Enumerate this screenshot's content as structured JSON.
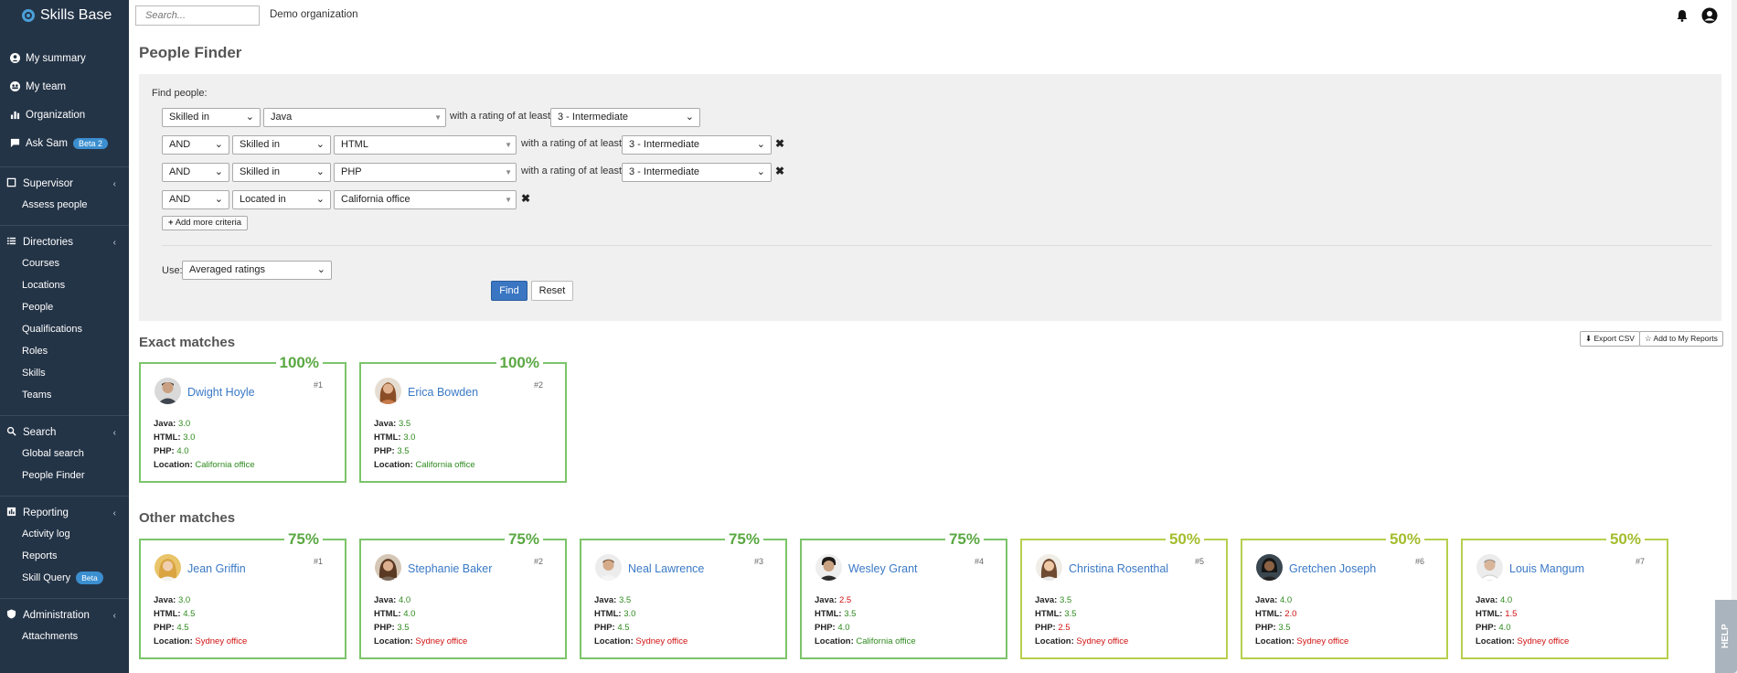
{
  "app": {
    "brand": "Skills Base"
  },
  "topbar": {
    "search_placeholder": "Search...",
    "org": "Demo organization"
  },
  "sidebar": {
    "top_items": [
      {
        "label": "My summary"
      },
      {
        "label": "My team"
      },
      {
        "label": "Organization"
      },
      {
        "label": "Ask Sam",
        "badge": "Beta 2"
      }
    ],
    "sections": [
      {
        "label": "Supervisor",
        "items": [
          "Assess people"
        ]
      },
      {
        "label": "Directories",
        "items": [
          "Courses",
          "Locations",
          "People",
          "Qualifications",
          "Roles",
          "Skills",
          "Teams"
        ]
      },
      {
        "label": "Search",
        "items": [
          "Global search",
          "People Finder"
        ]
      },
      {
        "label": "Reporting",
        "items": [
          "Activity log",
          "Reports",
          "Skill Query"
        ],
        "skill_query_badge": "Beta"
      },
      {
        "label": "Administration",
        "items": [
          "Attachments"
        ]
      }
    ]
  },
  "page": {
    "title": "People Finder"
  },
  "criteria": {
    "find_label": "Find people:",
    "with_rating": "with a rating of at least",
    "rows": [
      {
        "type": "Skilled in",
        "value": "Java",
        "rating": "3 - Intermediate"
      },
      {
        "op": "AND",
        "type": "Skilled in",
        "value": "HTML",
        "rating": "3 - Intermediate"
      },
      {
        "op": "AND",
        "type": "Skilled in",
        "value": "PHP",
        "rating": "3 - Intermediate"
      },
      {
        "op": "AND",
        "type": "Located in",
        "value": "California office"
      }
    ],
    "add_more": "Add more criteria",
    "use_label": "Use:",
    "use_value": "Averaged ratings",
    "find": "Find",
    "reset": "Reset"
  },
  "exact": {
    "title": "Exact matches",
    "export_csv": "Export CSV",
    "add_reports": "Add to My Reports",
    "cards": [
      {
        "pct": "100%",
        "name": "Dwight Hoyle",
        "rank": "#1",
        "java": "3.0",
        "html": "3.0",
        "php": "4.0",
        "location": "California office"
      },
      {
        "pct": "100%",
        "name": "Erica Bowden",
        "rank": "#2",
        "java": "3.5",
        "html": "3.0",
        "php": "3.5",
        "location": "California office"
      }
    ]
  },
  "other": {
    "title": "Other matches",
    "cards": [
      {
        "pct": "75%",
        "name": "Jean Griffin",
        "rank": "#1",
        "java": "3.0",
        "html": "4.5",
        "php": "4.5",
        "location": "Sydney office"
      },
      {
        "pct": "75%",
        "name": "Stephanie Baker",
        "rank": "#2",
        "java": "4.0",
        "html": "4.0",
        "php": "3.5",
        "location": "Sydney office"
      },
      {
        "pct": "75%",
        "name": "Neal Lawrence",
        "rank": "#3",
        "java": "3.5",
        "html": "3.0",
        "php": "4.5",
        "location": "Sydney office"
      },
      {
        "pct": "75%",
        "name": "Wesley Grant",
        "rank": "#4",
        "java": "2.5",
        "html": "3.5",
        "php": "4.0",
        "location": "California office"
      },
      {
        "pct": "50%",
        "name": "Christina Rosenthal",
        "rank": "#5",
        "java": "3.5",
        "html": "3.5",
        "php": "2.5",
        "location": "Sydney office"
      },
      {
        "pct": "50%",
        "name": "Gretchen Joseph",
        "rank": "#6",
        "java": "4.0",
        "html": "2.0",
        "php": "3.5",
        "location": "Sydney office"
      },
      {
        "pct": "50%",
        "name": "Louis Mangum",
        "rank": "#7",
        "java": "4.0",
        "html": "1.5",
        "php": "4.0",
        "location": "Sydney office"
      }
    ]
  },
  "labels": {
    "java": "Java:",
    "html": "HTML:",
    "php": "PHP:",
    "location": "Location:"
  },
  "help": "HELP",
  "colors": {
    "sidebar": "#243447",
    "match_full": "#7cc46a",
    "match_partial": "#b6cf4e",
    "good": "#2e8a1e",
    "bad": "#d01010",
    "primary": "#3a76c2"
  }
}
